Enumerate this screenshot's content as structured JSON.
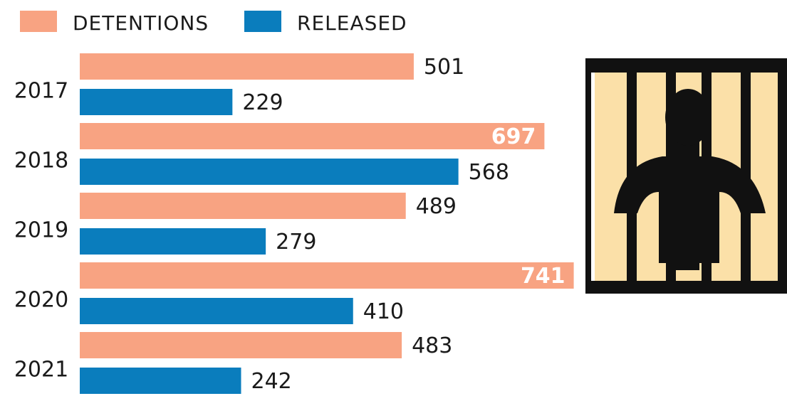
{
  "chart_data": {
    "type": "bar",
    "orientation": "horizontal",
    "categories": [
      "2017",
      "2018",
      "2019",
      "2020",
      "2021"
    ],
    "series": [
      {
        "name": "DETENTIONS",
        "color": "#f8a382",
        "values": [
          501,
          697,
          489,
          741,
          483
        ]
      },
      {
        "name": "RELEASED",
        "color": "#0a7dbd",
        "values": [
          229,
          568,
          279,
          410,
          242
        ]
      }
    ]
  }
}
